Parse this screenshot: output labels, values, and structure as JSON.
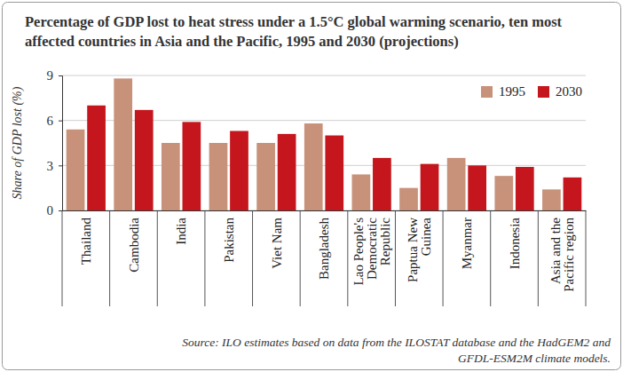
{
  "chart_data": {
    "type": "bar",
    "title": "Percentage of GDP lost to heat stress under a 1.5°C global warming scenario, ten most affected countries in Asia and the Pacific, 1995 and 2030 (projections)",
    "ylabel": "Share of GDP lost (%)",
    "source": "Source: ILO estimates based on data from the ILOSTAT database and the HadGEM2 and GFDL-ESM2M climate models.",
    "categories": [
      "Thailand",
      "Cambodia",
      "India",
      "Pakistan",
      "Viet Nam",
      "Bangladesh",
      "Lao People's Democratic Republic",
      "Paptua New Guinea",
      "Myanmar",
      "Indonesia",
      "Asia and the Pacific region"
    ],
    "series": [
      {
        "name": "1995",
        "color": "#c8917a",
        "values": [
          5.4,
          8.8,
          4.5,
          4.5,
          4.5,
          5.8,
          2.4,
          1.5,
          3.5,
          2.3,
          1.4
        ]
      },
      {
        "name": "2030",
        "color": "#c4161c",
        "values": [
          7.0,
          6.7,
          5.9,
          5.3,
          5.1,
          5.0,
          3.5,
          3.1,
          3.0,
          2.9,
          2.2
        ]
      }
    ],
    "ylim": [
      0,
      9
    ],
    "yticks": [
      0,
      3,
      6,
      9
    ],
    "grid": true,
    "legend": "top-right"
  }
}
